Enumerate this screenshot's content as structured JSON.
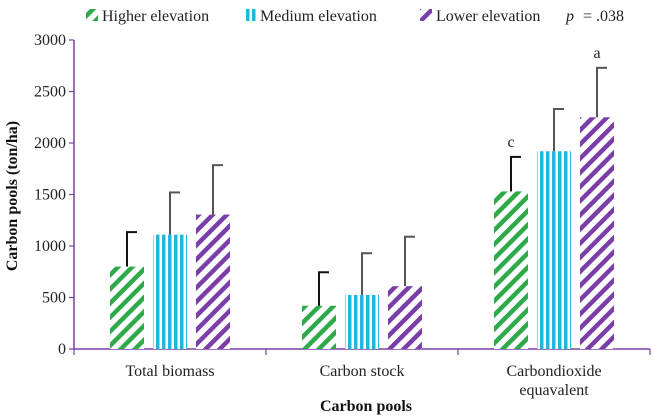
{
  "chart_data": {
    "type": "bar",
    "title": "",
    "xlabel": "Carbon pools",
    "ylabel": "Carbon pools (ton/ha)",
    "ylim": [
      0,
      3000
    ],
    "yticks": [
      "0",
      "500",
      "1000",
      "1500",
      "2000",
      "2500",
      "3000"
    ],
    "ytick_values": [
      0,
      500,
      1000,
      1500,
      2000,
      2500,
      3000
    ],
    "categories": [
      [
        "Total biomass"
      ],
      [
        "Carbon stock"
      ],
      [
        "Carbondioxide",
        "equavalent"
      ]
    ],
    "series": [
      {
        "name": "Higher elevation",
        "color": "#2eaa4a",
        "pattern": "diagonal-right",
        "values": [
          800,
          420,
          1530
        ],
        "error_upper": [
          1135,
          745,
          1865
        ]
      },
      {
        "name": "Medium elevation",
        "color": "#1fb7df",
        "pattern": "vertical",
        "values": [
          1110,
          525,
          1920
        ],
        "error_upper": [
          1520,
          930,
          2330
        ]
      },
      {
        "name": "Lower elevation",
        "color": "#7a3ea8",
        "pattern": "diagonal-right",
        "values": [
          1305,
          610,
          2250
        ],
        "error_upper": [
          1785,
          1090,
          2730
        ]
      }
    ],
    "legend_position": "top",
    "significance": {
      "p_label": "p",
      "p_value": "= .038"
    },
    "annotations": [
      {
        "text": "c",
        "series": 0,
        "category": 2
      },
      {
        "text": "a",
        "series": 2,
        "category": 2
      }
    ]
  }
}
